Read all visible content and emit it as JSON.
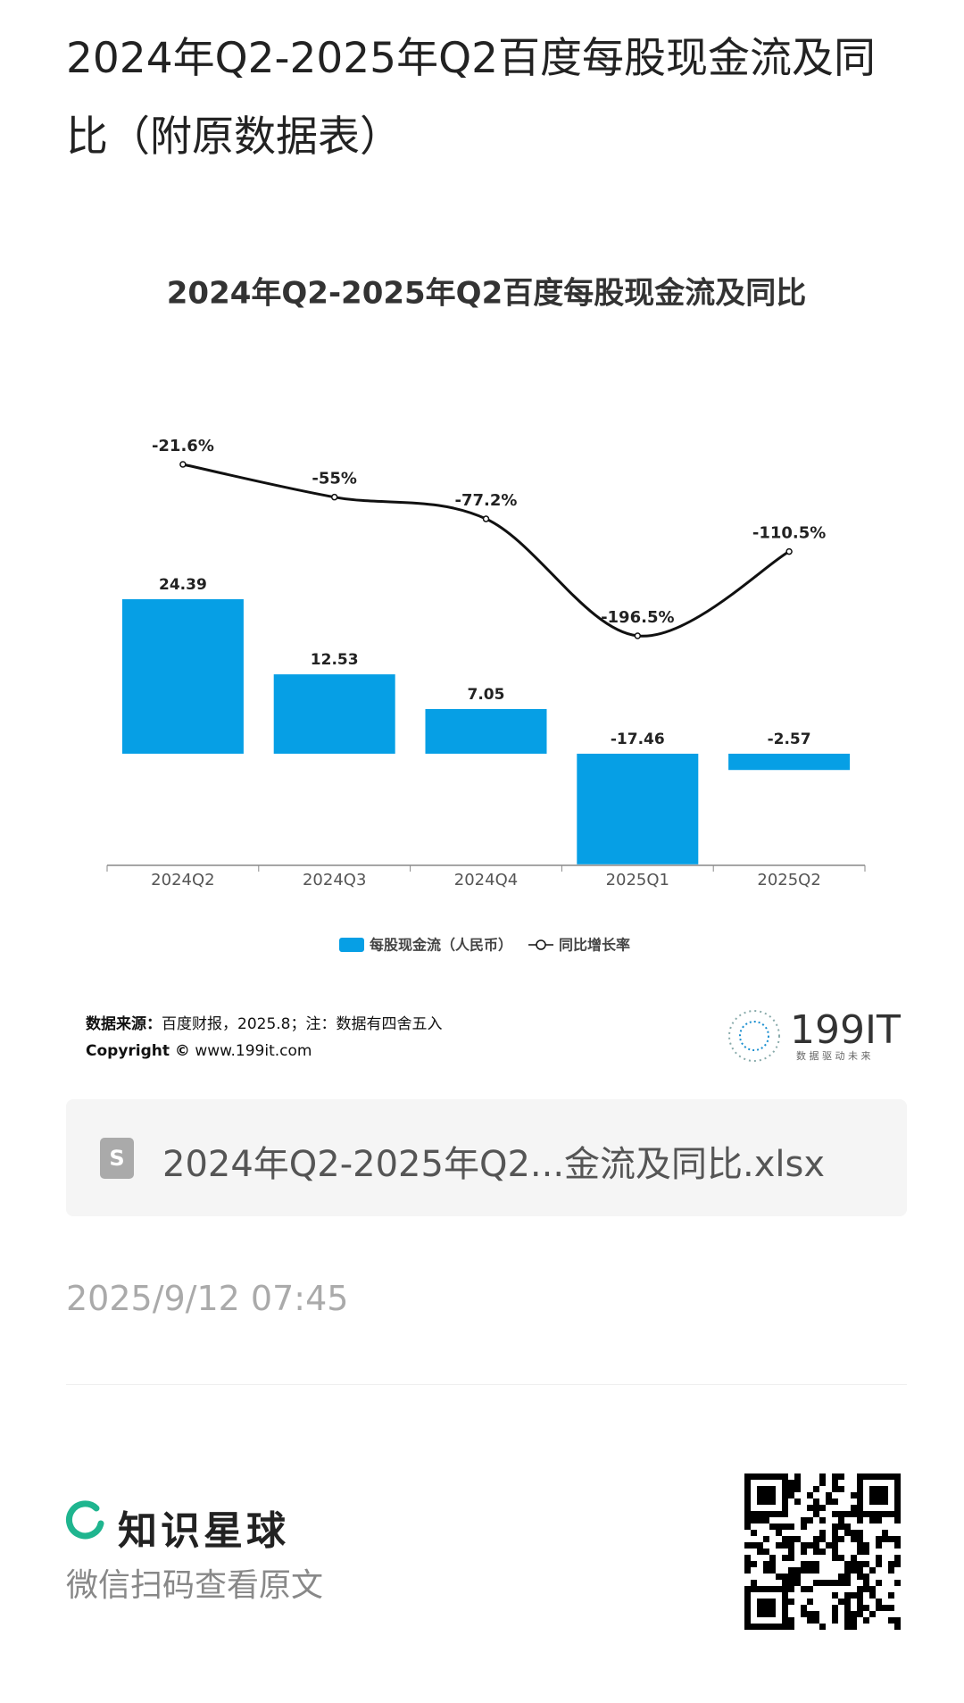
{
  "header": {
    "title": "2024年Q2-2025年Q2百度每股现金流及同比（附原数据表）"
  },
  "chart_data": {
    "type": "bar",
    "title": "2024年Q2-2025年Q2百度每股现金流及同比",
    "categories": [
      "2024Q2",
      "2024Q3",
      "2024Q4",
      "2025Q1",
      "2025Q2"
    ],
    "series": [
      {
        "name": "每股现金流（人民币）",
        "type": "bar",
        "color": "#069fe5",
        "values": [
          24.39,
          12.53,
          7.05,
          -17.46,
          -2.57
        ]
      },
      {
        "name": "同比增长率",
        "type": "line",
        "color": "#111111",
        "values": [
          -21.6,
          -55,
          -77.2,
          -196.5,
          -110.5
        ],
        "value_labels": [
          "-21.6%",
          "-55%",
          "-77.2%",
          "-196.5%",
          "-110.5%"
        ]
      }
    ],
    "legend": "bottom"
  },
  "source": {
    "label": "数据来源：",
    "text": "百度财报，2025.8；注：数据有四舍五入",
    "copyright": "Copyright ©",
    "site": "www.199it.com",
    "logo": "199IT",
    "slogan": "数 据 驱 动 未 来"
  },
  "file": {
    "name": "2024年Q2-2025年Q2...金流及同比.xlsx"
  },
  "timestamp": "2025/9/12 07:45",
  "footer": {
    "brand": "知识星球",
    "hint": "微信扫码查看原文"
  }
}
